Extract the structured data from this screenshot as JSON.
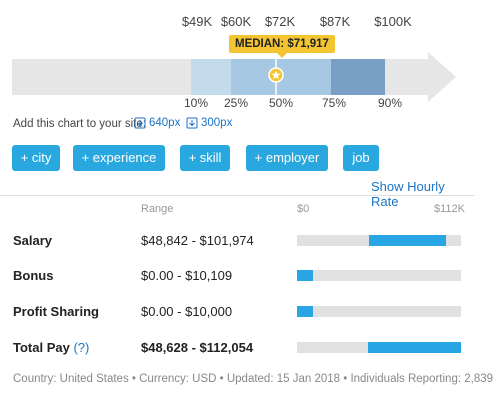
{
  "percentile_chart": {
    "top_values": [
      "$49K",
      "$60K",
      "$72K",
      "$87K",
      "$100K"
    ],
    "percentile_labels": [
      "10%",
      "25%",
      "50%",
      "75%",
      "90%"
    ],
    "median_label": "MEDIAN: $71,917",
    "band_colors": [
      "#c3dbeb",
      "#a6c8e3",
      "#7a9fc4"
    ],
    "arrow_color": "#e6e6e6",
    "median_icon": "star-icon"
  },
  "add_chart": {
    "label": "Add this chart to your site:",
    "link_640": "640px",
    "link_300": "300px"
  },
  "filters": [
    "+ city",
    "+ experience",
    "+ skill",
    "+ employer",
    "job"
  ],
  "show_hourly": "Show Hourly Rate",
  "table": {
    "header_range": "Range",
    "scale_min": "$0",
    "scale_max": "$112K",
    "rows": [
      {
        "label": "Salary",
        "range": "$48,842 - $101,974",
        "start": 0.4361,
        "end": 0.9105
      },
      {
        "label": "Bonus",
        "range": "$0.00 - $10,109",
        "start": 0.0,
        "end": 0.0903
      },
      {
        "label": "Profit Sharing",
        "range": "$0.00 - $10,000",
        "start": 0.0,
        "end": 0.0893
      },
      {
        "label": "Total Pay",
        "range": "$48,628 - $112,054",
        "start": 0.4342,
        "end": 1.0,
        "help": "(?)"
      }
    ]
  },
  "footer": "Country: United States • Currency: USD • Updated: 15 Jan 2018 • Individuals Reporting: 2,839"
}
